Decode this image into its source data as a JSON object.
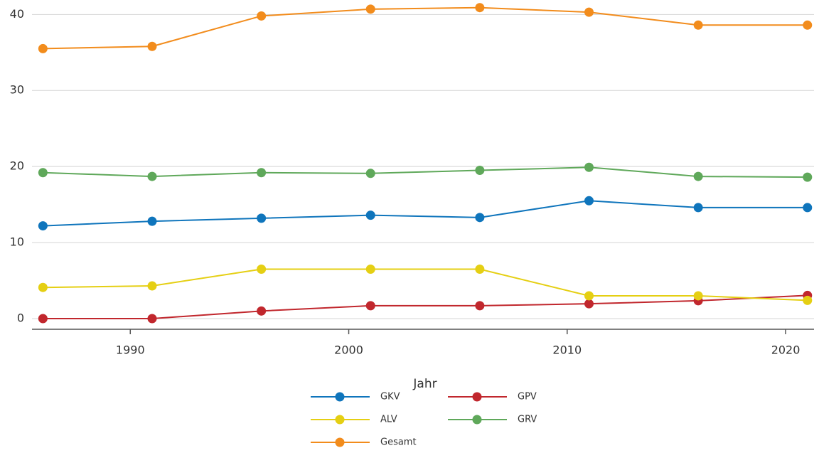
{
  "chart_data": {
    "type": "line",
    "x_label": "Jahr",
    "x": [
      1986,
      1991,
      1996,
      2001,
      2006,
      2011,
      2016,
      2021
    ],
    "xlim": [
      1985.5,
      2021.3
    ],
    "xticks": [
      1990,
      2000,
      2010,
      2020
    ],
    "ylim": [
      -1.4,
      41.9
    ],
    "yticks": [
      0,
      10,
      20,
      30,
      40
    ],
    "grid": true,
    "legend": "bottom",
    "series": [
      {
        "name": "GKV",
        "color": "#0f75bc",
        "values": [
          12.2,
          12.8,
          13.2,
          13.6,
          13.3,
          15.5,
          14.6,
          14.6
        ]
      },
      {
        "name": "GPV",
        "color": "#c1272d",
        "values": [
          0,
          0,
          1.0,
          1.7,
          1.7,
          1.95,
          2.35,
          3.05
        ]
      },
      {
        "name": "ALV",
        "color": "#e5cf13",
        "values": [
          4.1,
          4.3,
          6.5,
          6.5,
          6.5,
          3.0,
          3.0,
          2.4
        ]
      },
      {
        "name": "GRV",
        "color": "#5fa85a",
        "values": [
          19.2,
          18.7,
          19.2,
          19.1,
          19.5,
          19.9,
          18.7,
          18.6
        ]
      },
      {
        "name": "Gesamt",
        "color": "#f28c1c",
        "values": [
          35.5,
          35.8,
          39.8,
          40.7,
          40.9,
          40.3,
          38.6,
          38.6
        ]
      }
    ]
  }
}
